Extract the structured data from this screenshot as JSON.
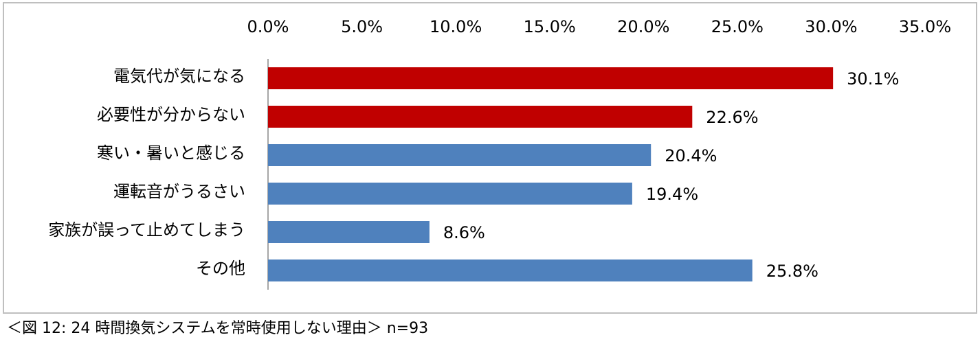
{
  "chart_data": {
    "type": "bar",
    "orientation": "horizontal",
    "categories": [
      "電気代が気になる",
      "必要性が分からない",
      "寒い・暑いと感じる",
      "運転音がうるさい",
      "家族が誤って止めてしまう",
      "その他"
    ],
    "values": [
      30.1,
      22.6,
      20.4,
      19.4,
      8.6,
      25.8
    ],
    "value_labels": [
      "30.1%",
      "22.6%",
      "20.4%",
      "19.4%",
      "8.6%",
      "25.8%"
    ],
    "colors": [
      "#c00000",
      "#c00000",
      "#4f81bd",
      "#4f81bd",
      "#4f81bd",
      "#4f81bd"
    ],
    "xlim": [
      0,
      35
    ],
    "xticks": [
      {
        "value": 0,
        "label": "0.0%"
      },
      {
        "value": 5,
        "label": "5.0%"
      },
      {
        "value": 10,
        "label": "10.0%"
      },
      {
        "value": 15,
        "label": "15.0%"
      },
      {
        "value": 20,
        "label": "20.0%"
      },
      {
        "value": 25,
        "label": "25.0%"
      },
      {
        "value": 30,
        "label": "30.0%"
      },
      {
        "value": 35,
        "label": "35.0%"
      }
    ],
    "grid": false,
    "caption": "＜図 12: 24 時間換気システムを常時使用しない理由＞ n=93"
  }
}
